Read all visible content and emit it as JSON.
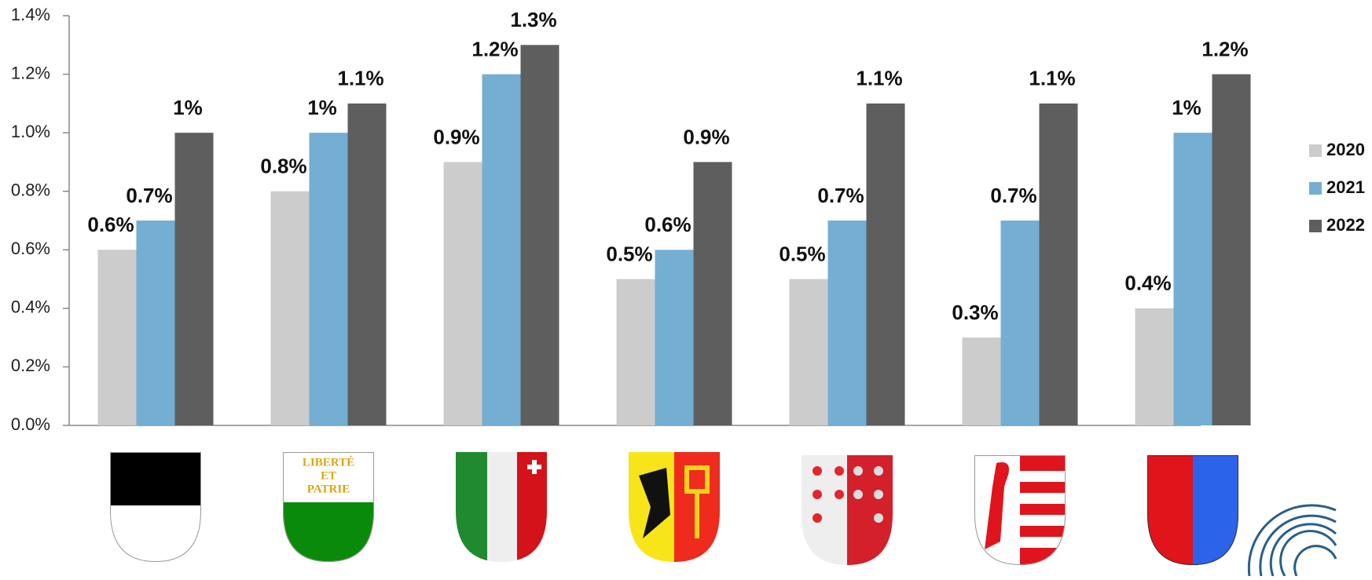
{
  "chart_data": {
    "type": "bar",
    "categories": [
      null,
      null,
      null,
      null,
      null,
      null,
      null
    ],
    "series": [
      {
        "name": "2020",
        "color": "#cccccc",
        "values": [
          0.6,
          0.8,
          0.9,
          0.5,
          0.5,
          0.3,
          0.4
        ],
        "value_labels": [
          "0.6%",
          "0.8%",
          "0.9%",
          "0.5%",
          "0.5%",
          "0.3%",
          "0.4%"
        ]
      },
      {
        "name": "2021",
        "color": "#74aed3",
        "values": [
          0.7,
          1.0,
          1.2,
          0.6,
          0.7,
          0.7,
          1.0
        ],
        "value_labels": [
          "0.7%",
          "1%",
          "1.2%",
          "0.6%",
          "0.7%",
          "0.7%",
          "1%"
        ]
      },
      {
        "name": "2022",
        "color": "#5e5e5e",
        "values": [
          1.0,
          1.1,
          1.3,
          0.9,
          1.1,
          1.1,
          1.2
        ],
        "value_labels": [
          "1%",
          "1.1%",
          "1.3%",
          "0.9%",
          "1.1%",
          "1.1%",
          "1.2%"
        ]
      }
    ],
    "ylim": [
      0,
      1.4
    ],
    "yticks": [
      {
        "value": 0,
        "label": "0.0%"
      },
      {
        "value": 0.2,
        "label": "0.2%"
      },
      {
        "value": 0.4,
        "label": "0.4%"
      },
      {
        "value": 0.6,
        "label": "0.6%"
      },
      {
        "value": 0.8,
        "label": "0.8%"
      },
      {
        "value": 1.0,
        "label": "1.0%"
      },
      {
        "value": 1.2,
        "label": "1.2%"
      },
      {
        "value": 1.4,
        "label": "1.4%"
      }
    ],
    "grid": false,
    "legend": "right",
    "annotations": [
      "LIBERTÉ",
      "ET",
      "PATRIE"
    ]
  }
}
